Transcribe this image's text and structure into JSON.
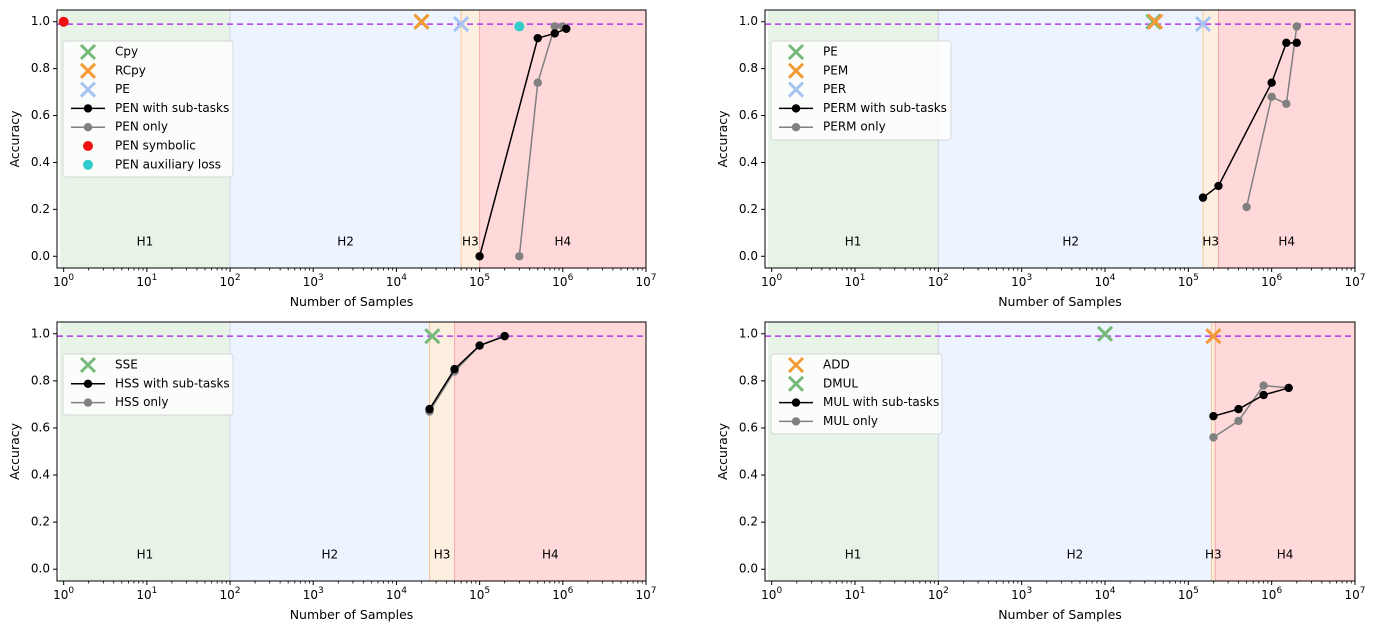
{
  "chart_data": [
    {
      "type": "scatter",
      "xscale": "log",
      "xlim_exp": [
        0,
        7
      ],
      "ylim": [
        -0.05,
        1.05
      ],
      "xlabel": "Number of Samples",
      "ylabel": "Accuracy",
      "x_tick_labels": [
        "10^0",
        "10^1",
        "10^2",
        "10^3",
        "10^4",
        "10^5",
        "10^6",
        "10^7"
      ],
      "y_ticks": [
        0.0,
        0.2,
        0.4,
        0.6,
        0.8,
        1.0
      ],
      "y_tick_labels": [
        "0.0",
        "0.2",
        "0.4",
        "0.6",
        "0.8",
        "1.0"
      ],
      "threshold": 0.99,
      "regions": [
        {
          "label": "H1",
          "x0": 0.9,
          "x1": 100,
          "color": "#e8f3e8"
        },
        {
          "label": "H2",
          "x0": 100,
          "x1": 60000,
          "color": "#edf4ff"
        },
        {
          "label": "H3",
          "x0": 60000,
          "x1": 100000,
          "color": "#fdefe0"
        },
        {
          "label": "H4",
          "x0": 100000,
          "x1": 10000000,
          "color": "#ffd9d9"
        }
      ],
      "legend": [
        {
          "label": "Cpy",
          "marker": "x",
          "color": "#77b97a"
        },
        {
          "label": "RCpy",
          "marker": "x",
          "color": "#f39a34"
        },
        {
          "label": "PE",
          "marker": "x",
          "color": "#a5c4f2"
        },
        {
          "label": "PEN with sub-tasks",
          "marker": "line-dot",
          "color": "#000000"
        },
        {
          "label": "PEN only",
          "marker": "line-dot",
          "color": "#808080"
        },
        {
          "label": "PEN symbolic",
          "marker": "dot",
          "color": "#ee1111"
        },
        {
          "label": "PEN auxiliary loss",
          "marker": "dot",
          "color": "#33cccc"
        }
      ],
      "series": [
        {
          "name": "Cpy",
          "kind": "x",
          "color": "#77b97a",
          "points": [
            [
              20000,
              1.0
            ]
          ]
        },
        {
          "name": "RCpy",
          "kind": "x",
          "color": "#f39a34",
          "points": [
            [
              20000,
              1.0
            ]
          ]
        },
        {
          "name": "PE",
          "kind": "x",
          "color": "#a5c4f2",
          "points": [
            [
              60000,
              0.99
            ]
          ]
        },
        {
          "name": "PEN only",
          "kind": "line",
          "color": "#808080",
          "points": [
            [
              300000,
              0.0
            ],
            [
              500000,
              0.74
            ],
            [
              800000,
              0.98
            ],
            [
              1000000,
              0.98
            ]
          ]
        },
        {
          "name": "PEN with sub-tasks",
          "kind": "line",
          "color": "#000000",
          "points": [
            [
              100000,
              0.0
            ],
            [
              500000,
              0.93
            ],
            [
              800000,
              0.95
            ],
            [
              1100000,
              0.97
            ]
          ]
        },
        {
          "name": "PEN symbolic",
          "kind": "dot",
          "color": "#ee1111",
          "points": [
            [
              1,
              1.0
            ]
          ]
        },
        {
          "name": "PEN auxiliary loss",
          "kind": "dot",
          "color": "#33cccc",
          "points": [
            [
              300000,
              0.98
            ]
          ]
        }
      ]
    },
    {
      "type": "scatter",
      "xscale": "log",
      "xlim_exp": [
        0,
        7
      ],
      "ylim": [
        -0.05,
        1.05
      ],
      "xlabel": "Number of Samples",
      "ylabel": "Accuracy",
      "x_tick_labels": [
        "10^0",
        "10^1",
        "10^2",
        "10^3",
        "10^4",
        "10^5",
        "10^6",
        "10^7"
      ],
      "y_ticks": [
        0.0,
        0.2,
        0.4,
        0.6,
        0.8,
        1.0
      ],
      "y_tick_labels": [
        "0.0",
        "0.2",
        "0.4",
        "0.6",
        "0.8",
        "1.0"
      ],
      "threshold": 0.99,
      "regions": [
        {
          "label": "H1",
          "x0": 0.9,
          "x1": 100,
          "color": "#e8f3e8"
        },
        {
          "label": "H2",
          "x0": 100,
          "x1": 150000,
          "color": "#edf4ff"
        },
        {
          "label": "H3",
          "x0": 150000,
          "x1": 230000,
          "color": "#fdefe0"
        },
        {
          "label": "H4",
          "x0": 230000,
          "x1": 10000000,
          "color": "#ffd9d9"
        }
      ],
      "legend": [
        {
          "label": "PE",
          "marker": "x",
          "color": "#77b97a"
        },
        {
          "label": "PEM",
          "marker": "x",
          "color": "#f39a34"
        },
        {
          "label": "PER",
          "marker": "x",
          "color": "#a5c4f2"
        },
        {
          "label": "PERM with sub-tasks",
          "marker": "line-dot",
          "color": "#000000"
        },
        {
          "label": "PERM only",
          "marker": "line-dot",
          "color": "#808080"
        }
      ],
      "series": [
        {
          "name": "PE",
          "kind": "x",
          "color": "#77b97a",
          "points": [
            [
              38000,
              1.0
            ]
          ]
        },
        {
          "name": "PEM",
          "kind": "x",
          "color": "#f39a34",
          "points": [
            [
              40000,
              1.0
            ]
          ]
        },
        {
          "name": "PER",
          "kind": "x",
          "color": "#a5c4f2",
          "points": [
            [
              150000,
              0.99
            ]
          ]
        },
        {
          "name": "PERM only",
          "kind": "line",
          "color": "#808080",
          "points": [
            [
              500000,
              0.21
            ],
            [
              1000000,
              0.68
            ],
            [
              1500000,
              0.65
            ],
            [
              2000000,
              0.98
            ]
          ]
        },
        {
          "name": "PERM with sub-tasks",
          "kind": "line",
          "color": "#000000",
          "points": [
            [
              150000,
              0.25
            ],
            [
              230000,
              0.3
            ],
            [
              1000000,
              0.74
            ],
            [
              1500000,
              0.91
            ],
            [
              2000000,
              0.91
            ]
          ]
        }
      ]
    },
    {
      "type": "scatter",
      "xscale": "log",
      "xlim_exp": [
        0,
        7
      ],
      "ylim": [
        -0.05,
        1.05
      ],
      "xlabel": "Number of Samples",
      "ylabel": "Accuracy",
      "x_tick_labels": [
        "10^0",
        "10^1",
        "10^2",
        "10^3",
        "10^4",
        "10^5",
        "10^6",
        "10^7"
      ],
      "y_ticks": [
        0.0,
        0.2,
        0.4,
        0.6,
        0.8,
        1.0
      ],
      "y_tick_labels": [
        "0.0",
        "0.2",
        "0.4",
        "0.6",
        "0.8",
        "1.0"
      ],
      "threshold": 0.99,
      "regions": [
        {
          "label": "H1",
          "x0": 0.9,
          "x1": 100,
          "color": "#e8f3e8"
        },
        {
          "label": "H2",
          "x0": 100,
          "x1": 25000,
          "color": "#edf4ff"
        },
        {
          "label": "H3",
          "x0": 25000,
          "x1": 50000,
          "color": "#fdefe0"
        },
        {
          "label": "H4",
          "x0": 50000,
          "x1": 10000000,
          "color": "#ffd9d9"
        }
      ],
      "legend": [
        {
          "label": "SSE",
          "marker": "x",
          "color": "#77b97a"
        },
        {
          "label": "HSS with sub-tasks",
          "marker": "line-dot",
          "color": "#000000"
        },
        {
          "label": "HSS only",
          "marker": "line-dot",
          "color": "#808080"
        }
      ],
      "series": [
        {
          "name": "SSE",
          "kind": "x",
          "color": "#77b97a",
          "points": [
            [
              27000,
              0.99
            ]
          ]
        },
        {
          "name": "HSS only",
          "kind": "line",
          "color": "#808080",
          "points": [
            [
              25000,
              0.67
            ],
            [
              50000,
              0.84
            ],
            [
              100000,
              0.95
            ],
            [
              200000,
              0.99
            ]
          ]
        },
        {
          "name": "HSS with sub-tasks",
          "kind": "line",
          "color": "#000000",
          "points": [
            [
              25000,
              0.68
            ],
            [
              50000,
              0.85
            ],
            [
              100000,
              0.95
            ],
            [
              200000,
              0.99
            ]
          ]
        }
      ]
    },
    {
      "type": "scatter",
      "xscale": "log",
      "xlim_exp": [
        0,
        7
      ],
      "ylim": [
        -0.05,
        1.05
      ],
      "xlabel": "Number of Samples",
      "ylabel": "Accuracy",
      "x_tick_labels": [
        "10^0",
        "10^1",
        "10^2",
        "10^3",
        "10^4",
        "10^5",
        "10^6",
        "10^7"
      ],
      "y_ticks": [
        0.0,
        0.2,
        0.4,
        0.6,
        0.8,
        1.0
      ],
      "y_tick_labels": [
        "0.0",
        "0.2",
        "0.4",
        "0.6",
        "0.8",
        "1.0"
      ],
      "threshold": 0.99,
      "regions": [
        {
          "label": "H1",
          "x0": 0.9,
          "x1": 100,
          "color": "#e8f3e8"
        },
        {
          "label": "H2",
          "x0": 100,
          "x1": 190000,
          "color": "#edf4ff"
        },
        {
          "label": "H3",
          "x0": 190000,
          "x1": 210000,
          "color": "#fdefe0"
        },
        {
          "label": "H4",
          "x0": 210000,
          "x1": 10000000,
          "color": "#ffd9d9"
        }
      ],
      "legend": [
        {
          "label": "ADD",
          "marker": "x",
          "color": "#f39a34"
        },
        {
          "label": "DMUL",
          "marker": "x",
          "color": "#77b97a"
        },
        {
          "label": "MUL with sub-tasks",
          "marker": "line-dot",
          "color": "#000000"
        },
        {
          "label": "MUL only",
          "marker": "line-dot",
          "color": "#808080"
        }
      ],
      "series": [
        {
          "name": "DMUL",
          "kind": "x",
          "color": "#77b97a",
          "points": [
            [
              10000,
              1.0
            ]
          ]
        },
        {
          "name": "ADD",
          "kind": "x",
          "color": "#f39a34",
          "points": [
            [
              200000,
              0.99
            ]
          ]
        },
        {
          "name": "MUL only",
          "kind": "line",
          "color": "#808080",
          "points": [
            [
              200000,
              0.56
            ],
            [
              400000,
              0.63
            ],
            [
              800000,
              0.78
            ],
            [
              1600000,
              0.77
            ]
          ]
        },
        {
          "name": "MUL with sub-tasks",
          "kind": "line",
          "color": "#000000",
          "points": [
            [
              200000,
              0.65
            ],
            [
              400000,
              0.68
            ],
            [
              800000,
              0.74
            ],
            [
              1600000,
              0.77
            ]
          ]
        }
      ]
    }
  ]
}
